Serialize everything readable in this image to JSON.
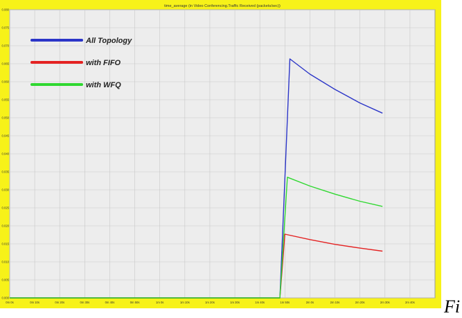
{
  "colors": {
    "frame": "#f7f219",
    "plot_bg": "#ededed",
    "grid": "#c8c8c8",
    "series": [
      "#2b35c8",
      "#e42222",
      "#2fd830"
    ]
  },
  "caption": "Fi",
  "chart_data": {
    "type": "line",
    "title": "time_average (in Video Conferencing.Traffic Received (packets/sec))",
    "xlabel": "",
    "ylabel": "",
    "xlim": [
      0,
      170
    ],
    "ylim": [
      0,
      0.085
    ],
    "grid": true,
    "legend_position": "top-left",
    "x_tick_labels": [
      "0m 0s",
      "0m 10s",
      "0m 20s",
      "0m 30s",
      "0m 40s",
      "0m 50s",
      "1m 0s",
      "1m 10s",
      "1m 20s",
      "1m 30s",
      "1m 40s",
      "1m 50s",
      "2m 0s",
      "2m 10s",
      "2m 20s",
      "2m 30s",
      "2m 40s"
    ],
    "y_tick_labels": [
      "0.000",
      "0.005",
      "0.010",
      "0.015",
      "0.020",
      "0.025",
      "0.030",
      "0.035",
      "0.040",
      "0.045",
      "0.050",
      "0.055",
      "0.060",
      "0.065",
      "0.070",
      "0.075",
      "0.080"
    ],
    "series": [
      {
        "name": "All Topology",
        "points": [
          [
            0,
            0
          ],
          [
            108,
            0
          ],
          [
            112,
            0.0705
          ],
          [
            120,
            0.066
          ],
          [
            130,
            0.0615
          ],
          [
            140,
            0.0575
          ],
          [
            149,
            0.0545
          ]
        ]
      },
      {
        "name": "with FIFO",
        "points": [
          [
            0,
            0
          ],
          [
            108,
            0
          ],
          [
            110,
            0.0188
          ],
          [
            120,
            0.0172
          ],
          [
            130,
            0.0158
          ],
          [
            140,
            0.0147
          ],
          [
            149,
            0.0138
          ]
        ]
      },
      {
        "name": "with WFQ",
        "points": [
          [
            0,
            0
          ],
          [
            108,
            0
          ],
          [
            111,
            0.0356
          ],
          [
            120,
            0.033
          ],
          [
            130,
            0.0306
          ],
          [
            140,
            0.0285
          ],
          [
            149,
            0.027
          ]
        ]
      }
    ]
  }
}
